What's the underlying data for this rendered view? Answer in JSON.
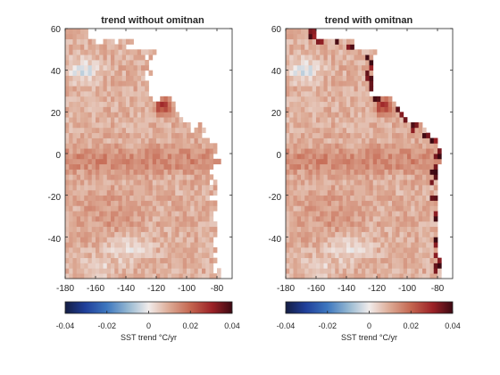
{
  "colors": {
    "ocean": "#ffffff",
    "land": "#ffffff",
    "axis": "#262626"
  },
  "colormap_name": "balance",
  "chart_data": [
    {
      "type": "heatmap",
      "title": "trend without omitnan",
      "xlim": [
        -180,
        -70
      ],
      "ylim": [
        -60,
        60
      ],
      "xticks": [
        "-180",
        "-160",
        "-140",
        "-120",
        "-100",
        "-80"
      ],
      "yticks": [
        "60",
        "40",
        "20",
        "0",
        "-20",
        "-40"
      ],
      "grid": false,
      "colorbar": {
        "label": "SST trend °C/yr",
        "clim": [
          -0.04,
          0.04
        ],
        "ticks": [
          "-0.04",
          "-0.02",
          "0",
          "0.02",
          "0.04"
        ]
      },
      "omitnan": false
    },
    {
      "type": "heatmap",
      "title": "trend with omitnan",
      "xlim": [
        -180,
        -70
      ],
      "ylim": [
        -60,
        60
      ],
      "xticks": [
        "-180",
        "-160",
        "-140",
        "-120",
        "-100",
        "-80"
      ],
      "yticks": [
        "60",
        "40",
        "20",
        "0",
        "-20",
        "-40"
      ],
      "grid": false,
      "colorbar": {
        "label": "SST trend °C/yr",
        "clim": [
          -0.04,
          0.04
        ],
        "ticks": [
          "-0.04",
          "-0.02",
          "0",
          "0.02",
          "0.04"
        ]
      },
      "omitnan": true
    }
  ]
}
